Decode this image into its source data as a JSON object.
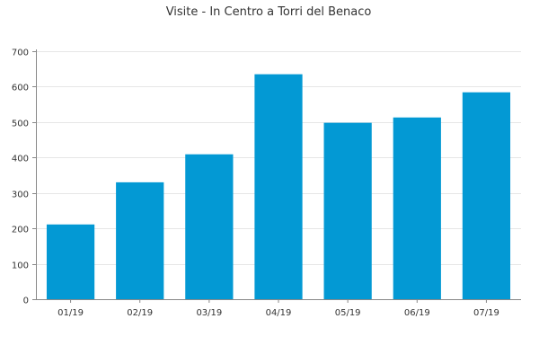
{
  "chart_data": {
    "type": "bar",
    "title": "Visite - In Centro a Torri del Benaco",
    "xlabel": "",
    "ylabel": "",
    "categories": [
      "01/19",
      "02/19",
      "03/19",
      "04/19",
      "05/19",
      "06/19",
      "07/19"
    ],
    "values": [
      211,
      330,
      409,
      635,
      498,
      513,
      584
    ],
    "ylim": [
      0,
      700
    ],
    "yticks": [
      0,
      100,
      200,
      300,
      400,
      500,
      600,
      700
    ],
    "grid": true,
    "legend": "none",
    "bar_color": "#0399d4",
    "axis_color": "#888888",
    "grid_color": "#e6e6e6",
    "text_color": "#333333"
  }
}
